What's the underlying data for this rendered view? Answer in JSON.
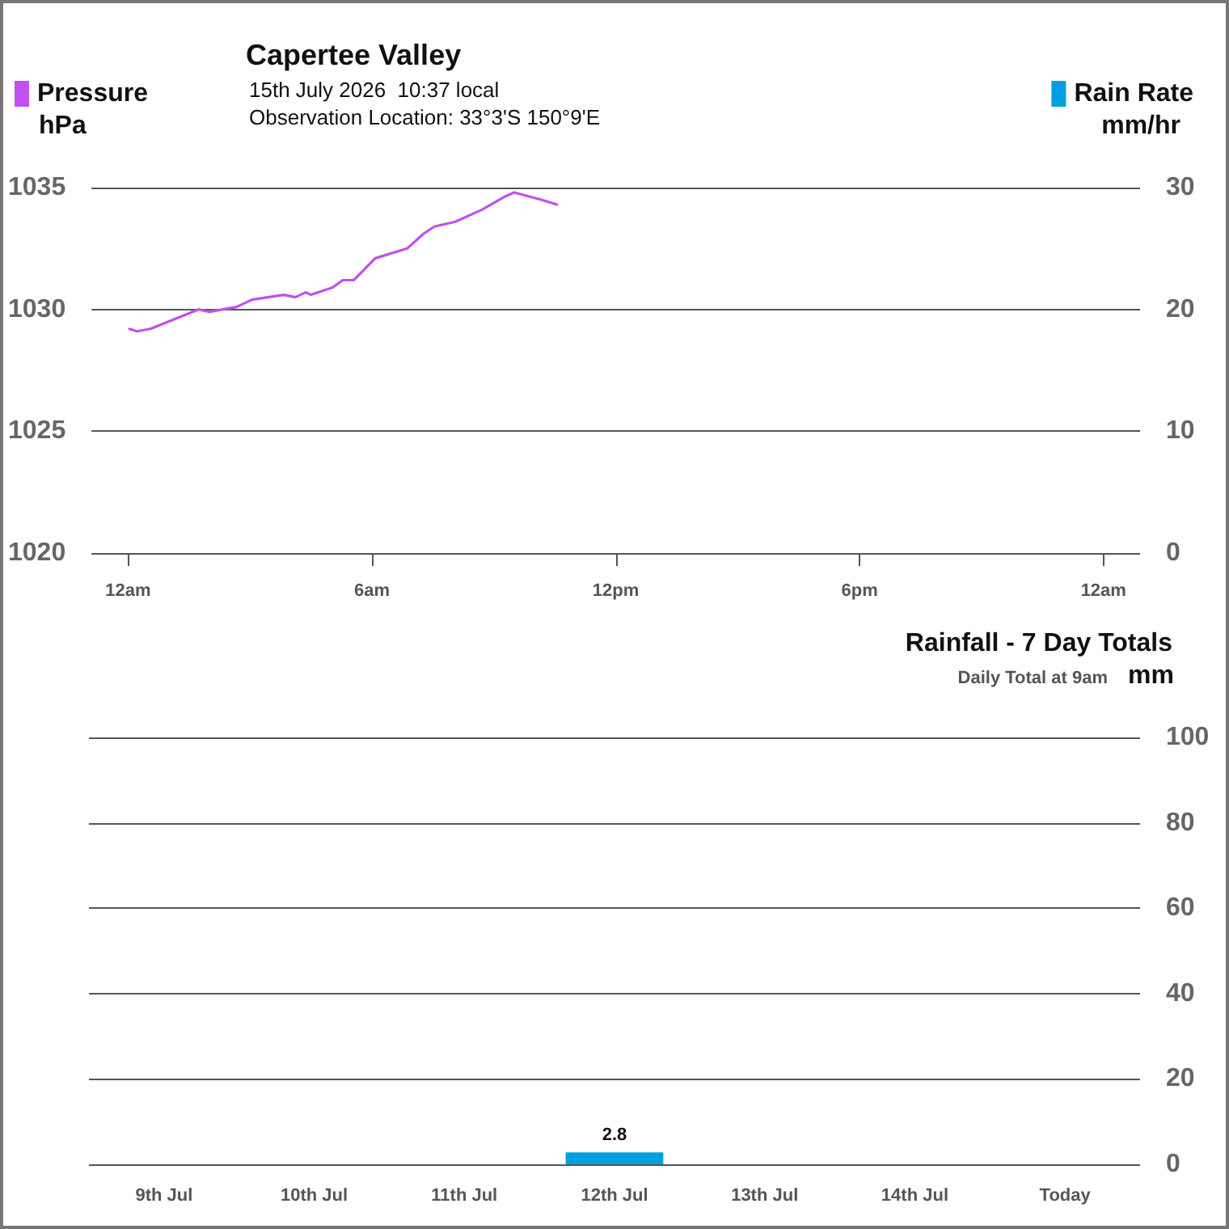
{
  "chart_data": [
    {
      "type": "line",
      "title": "Capertee Valley",
      "subtitle": "15th July 2026  10:37 local",
      "annotations": [
        "Observation Location: 33°3'S 150°9'E"
      ],
      "ylabel": "hPa",
      "y2label": "mm/hr",
      "series": [
        {
          "name": "Pressure",
          "color": "#c050f0",
          "x": [
            "2026-07-15T00:02",
            "2026-07-15T00:13",
            "2026-07-15T00:33",
            "2026-07-15T01:44",
            "2026-07-15T02:00",
            "2026-07-15T02:40",
            "2026-07-15T03:03",
            "2026-07-15T03:50",
            "2026-07-15T04:07",
            "2026-07-15T04:22",
            "2026-07-15T04:30",
            "2026-07-15T05:02",
            "2026-07-15T05:17",
            "2026-07-15T05:33",
            "2026-07-15T06:05",
            "2026-07-15T06:52",
            "2026-07-15T07:16",
            "2026-07-15T07:32",
            "2026-07-15T08:03",
            "2026-07-15T08:43",
            "2026-07-15T09:14",
            "2026-07-15T09:30",
            "2026-07-15T10:10",
            "2026-07-15T10:33"
          ],
          "values": [
            1029.2,
            1029.1,
            1029.2,
            1030.0,
            1029.9,
            1030.1,
            1030.4,
            1030.6,
            1030.5,
            1030.7,
            1030.6,
            1030.9,
            1031.2,
            1031.2,
            1032.1,
            1032.5,
            1033.1,
            1033.4,
            1033.6,
            1034.1,
            1034.6,
            1034.8,
            1034.5,
            1034.3
          ]
        },
        {
          "name": "Rain Rate",
          "color": "#00a0e0",
          "axis": "y2"
        }
      ],
      "xlim": [
        "2026-07-14T23:06",
        "2026-07-16T00:54"
      ],
      "xticks": [
        {
          "value": "2026-07-15T00:00",
          "label": "12am"
        },
        {
          "value": "2026-07-15T06:00",
          "label": "6am"
        },
        {
          "value": "2026-07-15T12:00",
          "label": "12pm"
        },
        {
          "value": "2026-07-15T18:00",
          "label": "6pm"
        },
        {
          "value": "2026-07-16T00:00",
          "label": "12am"
        }
      ],
      "ylim": [
        1020,
        1035
      ],
      "yticks": [
        1020,
        1025,
        1030,
        1035
      ],
      "y2lim": [
        0,
        30
      ],
      "y2ticks": [
        0,
        10,
        20,
        30
      ],
      "grid": "y",
      "legend": "top",
      "marker": "none",
      "line_style": "solid"
    },
    {
      "type": "bar",
      "title": "Rainfall - 7 Day Totals",
      "subtitle": "Daily Total at 9am",
      "ylabel": "mm",
      "categories": [
        "9th Jul",
        "10th Jul",
        "11th Jul",
        "12th Jul",
        "13th Jul",
        "14th Jul",
        "Today"
      ],
      "values": [
        0,
        0,
        0,
        2.8,
        0,
        0,
        0
      ],
      "value_labels": [
        null,
        null,
        null,
        "2.8",
        null,
        null,
        null
      ],
      "color": "#00a0e0",
      "ylim": [
        0,
        100
      ],
      "yticks": [
        0,
        20,
        40,
        60,
        80,
        100
      ],
      "grid": "y"
    }
  ]
}
